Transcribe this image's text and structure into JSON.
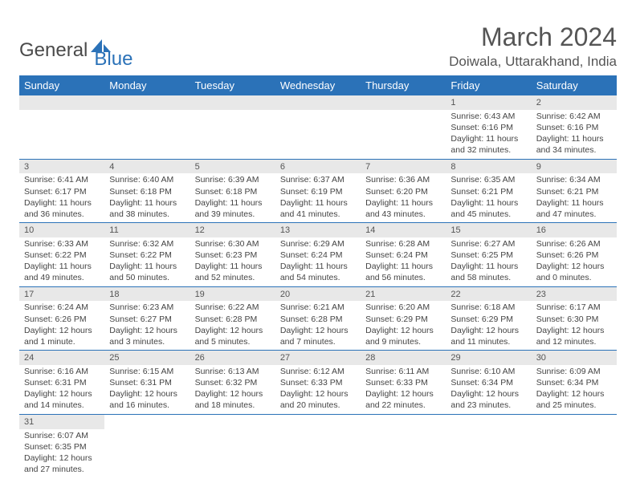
{
  "logo": {
    "text1": "General",
    "text2": "Blue"
  },
  "title": "March 2024",
  "location": "Doiwala, Uttarakhand, India",
  "colors": {
    "header_bg": "#2b72b8",
    "header_text": "#ffffff",
    "daynum_bg": "#e8e8e8",
    "border": "#2b72b8",
    "body_text": "#444444"
  },
  "days_of_week": [
    "Sunday",
    "Monday",
    "Tuesday",
    "Wednesday",
    "Thursday",
    "Friday",
    "Saturday"
  ],
  "weeks": [
    [
      null,
      null,
      null,
      null,
      null,
      {
        "n": "1",
        "sr": "6:43 AM",
        "ss": "6:16 PM",
        "dl": "11 hours and 32 minutes."
      },
      {
        "n": "2",
        "sr": "6:42 AM",
        "ss": "6:16 PM",
        "dl": "11 hours and 34 minutes."
      }
    ],
    [
      {
        "n": "3",
        "sr": "6:41 AM",
        "ss": "6:17 PM",
        "dl": "11 hours and 36 minutes."
      },
      {
        "n": "4",
        "sr": "6:40 AM",
        "ss": "6:18 PM",
        "dl": "11 hours and 38 minutes."
      },
      {
        "n": "5",
        "sr": "6:39 AM",
        "ss": "6:18 PM",
        "dl": "11 hours and 39 minutes."
      },
      {
        "n": "6",
        "sr": "6:37 AM",
        "ss": "6:19 PM",
        "dl": "11 hours and 41 minutes."
      },
      {
        "n": "7",
        "sr": "6:36 AM",
        "ss": "6:20 PM",
        "dl": "11 hours and 43 minutes."
      },
      {
        "n": "8",
        "sr": "6:35 AM",
        "ss": "6:21 PM",
        "dl": "11 hours and 45 minutes."
      },
      {
        "n": "9",
        "sr": "6:34 AM",
        "ss": "6:21 PM",
        "dl": "11 hours and 47 minutes."
      }
    ],
    [
      {
        "n": "10",
        "sr": "6:33 AM",
        "ss": "6:22 PM",
        "dl": "11 hours and 49 minutes."
      },
      {
        "n": "11",
        "sr": "6:32 AM",
        "ss": "6:22 PM",
        "dl": "11 hours and 50 minutes."
      },
      {
        "n": "12",
        "sr": "6:30 AM",
        "ss": "6:23 PM",
        "dl": "11 hours and 52 minutes."
      },
      {
        "n": "13",
        "sr": "6:29 AM",
        "ss": "6:24 PM",
        "dl": "11 hours and 54 minutes."
      },
      {
        "n": "14",
        "sr": "6:28 AM",
        "ss": "6:24 PM",
        "dl": "11 hours and 56 minutes."
      },
      {
        "n": "15",
        "sr": "6:27 AM",
        "ss": "6:25 PM",
        "dl": "11 hours and 58 minutes."
      },
      {
        "n": "16",
        "sr": "6:26 AM",
        "ss": "6:26 PM",
        "dl": "12 hours and 0 minutes."
      }
    ],
    [
      {
        "n": "17",
        "sr": "6:24 AM",
        "ss": "6:26 PM",
        "dl": "12 hours and 1 minute."
      },
      {
        "n": "18",
        "sr": "6:23 AM",
        "ss": "6:27 PM",
        "dl": "12 hours and 3 minutes."
      },
      {
        "n": "19",
        "sr": "6:22 AM",
        "ss": "6:28 PM",
        "dl": "12 hours and 5 minutes."
      },
      {
        "n": "20",
        "sr": "6:21 AM",
        "ss": "6:28 PM",
        "dl": "12 hours and 7 minutes."
      },
      {
        "n": "21",
        "sr": "6:20 AM",
        "ss": "6:29 PM",
        "dl": "12 hours and 9 minutes."
      },
      {
        "n": "22",
        "sr": "6:18 AM",
        "ss": "6:29 PM",
        "dl": "12 hours and 11 minutes."
      },
      {
        "n": "23",
        "sr": "6:17 AM",
        "ss": "6:30 PM",
        "dl": "12 hours and 12 minutes."
      }
    ],
    [
      {
        "n": "24",
        "sr": "6:16 AM",
        "ss": "6:31 PM",
        "dl": "12 hours and 14 minutes."
      },
      {
        "n": "25",
        "sr": "6:15 AM",
        "ss": "6:31 PM",
        "dl": "12 hours and 16 minutes."
      },
      {
        "n": "26",
        "sr": "6:13 AM",
        "ss": "6:32 PM",
        "dl": "12 hours and 18 minutes."
      },
      {
        "n": "27",
        "sr": "6:12 AM",
        "ss": "6:33 PM",
        "dl": "12 hours and 20 minutes."
      },
      {
        "n": "28",
        "sr": "6:11 AM",
        "ss": "6:33 PM",
        "dl": "12 hours and 22 minutes."
      },
      {
        "n": "29",
        "sr": "6:10 AM",
        "ss": "6:34 PM",
        "dl": "12 hours and 23 minutes."
      },
      {
        "n": "30",
        "sr": "6:09 AM",
        "ss": "6:34 PM",
        "dl": "12 hours and 25 minutes."
      }
    ],
    [
      {
        "n": "31",
        "sr": "6:07 AM",
        "ss": "6:35 PM",
        "dl": "12 hours and 27 minutes."
      },
      null,
      null,
      null,
      null,
      null,
      null
    ]
  ],
  "labels": {
    "sunrise": "Sunrise:",
    "sunset": "Sunset:",
    "daylight": "Daylight:"
  }
}
